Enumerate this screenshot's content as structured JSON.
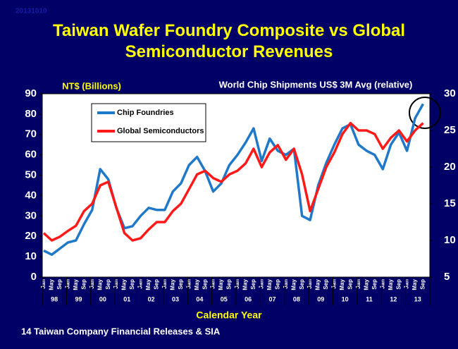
{
  "stamp": "20131010",
  "footer": "14 Taiwan Company Financial Releases & SIA",
  "chart_data": {
    "type": "line",
    "title": "Taiwan Wafer Foundry Composite vs Global Semiconductor Revenues",
    "y_label": "NT$ (Billions)",
    "y2_label": "World Chip Shipments US$ 3M Avg (relative)",
    "x_label": "Calendar Year",
    "legend": "upper left",
    "categories": [
      "Jan",
      "May",
      "Sep",
      "Jan",
      "May",
      "Sep",
      "Jan",
      "May",
      "Sep",
      "Jan",
      "May",
      "Sep",
      "Jan",
      "May",
      "Sep",
      "Jan",
      "May",
      "Sep",
      "Jan",
      "May",
      "Sep",
      "Jan",
      "May",
      "Sep",
      "Jan",
      "May",
      "Sep",
      "Jan",
      "May",
      "Sep",
      "Jan",
      "May",
      "Sep",
      "Jan",
      "May",
      "Sep",
      "Jan",
      "May",
      "Sep",
      "Jan",
      "May",
      "Sep",
      "Jan",
      "May",
      "Sep",
      "Jan",
      "May",
      "Sep"
    ],
    "years": [
      "98",
      "99",
      "00",
      "01",
      "02",
      "03",
      "04",
      "05",
      "06",
      "07",
      "08",
      "09",
      "10",
      "11",
      "12",
      "13"
    ],
    "series": [
      {
        "name": "Chip Foundries",
        "color": "#1f78c8",
        "axis": "y",
        "values": [
          13,
          11,
          14,
          17,
          18,
          26,
          33,
          53,
          48,
          34,
          24,
          25,
          30,
          34,
          33,
          33,
          42,
          46,
          55,
          59,
          52,
          42,
          46,
          55,
          60,
          66,
          73,
          57,
          68,
          62,
          60,
          63,
          30,
          28,
          45,
          56,
          65,
          73,
          75,
          65,
          62,
          60,
          53,
          65,
          71,
          62,
          78,
          85
        ]
      },
      {
        "name": "Global Semiconductors",
        "color": "#ff1a1a",
        "axis": "y2",
        "values": [
          11,
          10,
          10.5,
          11.3,
          12,
          14,
          15,
          17.5,
          18,
          14.5,
          11,
          10,
          10.3,
          11.5,
          12.5,
          12.5,
          14,
          15,
          17,
          19,
          19.5,
          18.5,
          18,
          19,
          19.5,
          20.5,
          22.5,
          20,
          22,
          23,
          21,
          22.5,
          19,
          14,
          17,
          20,
          22,
          24.5,
          26,
          25,
          25,
          24.5,
          22.5,
          24,
          25,
          23.5,
          25,
          26
        ]
      }
    ],
    "ylim": [
      0,
      90
    ],
    "yticks": [
      0,
      10,
      20,
      30,
      40,
      50,
      60,
      70,
      80,
      90
    ],
    "y2lim": [
      5,
      30
    ],
    "y2ticks": [
      5,
      10,
      15,
      20,
      25,
      30
    ],
    "grid": false
  }
}
